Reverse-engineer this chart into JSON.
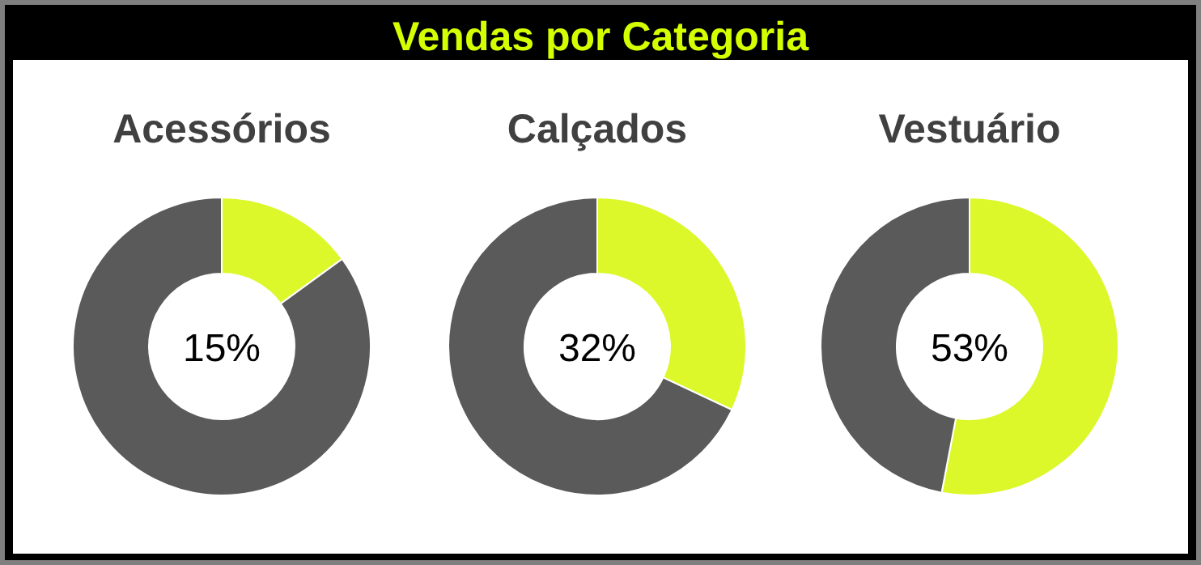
{
  "chart_data": [
    {
      "type": "other",
      "title": "Vendas por Categoria"
    },
    {
      "type": "donut",
      "title": "Acessórios",
      "categories": [
        null,
        null
      ],
      "values": [
        15,
        85
      ],
      "colors": [
        "#dcf82b",
        "#5a5a5a"
      ],
      "annotations": [
        "15%"
      ]
    },
    {
      "type": "donut",
      "title": "Calçados",
      "categories": [
        null,
        null
      ],
      "values": [
        32,
        68
      ],
      "colors": [
        "#dcf82b",
        "#5a5a5a"
      ],
      "annotations": [
        "32%"
      ]
    },
    {
      "type": "donut",
      "title": "Vestuário",
      "categories": [
        null,
        null
      ],
      "values": [
        53,
        47
      ],
      "colors": [
        "#dcf82b",
        "#5a5a5a"
      ],
      "annotations": [
        "53%"
      ]
    }
  ]
}
